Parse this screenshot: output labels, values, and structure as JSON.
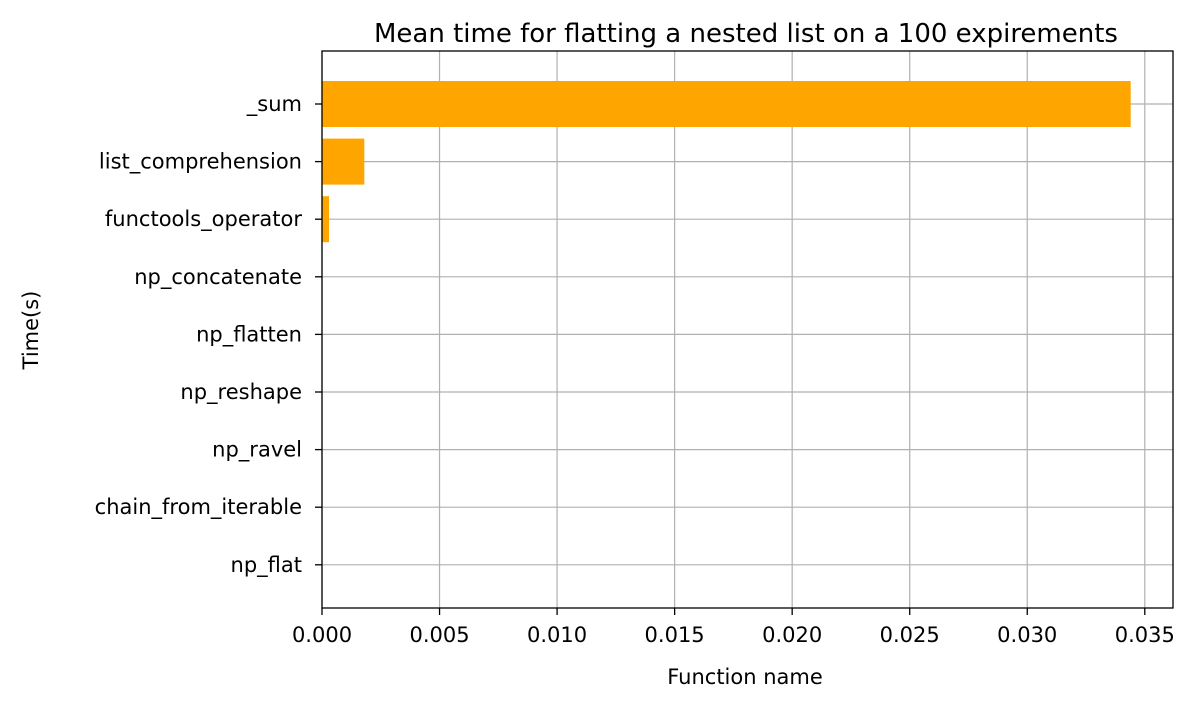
{
  "chart_data": {
    "type": "bar",
    "orientation": "horizontal",
    "title": "Mean time for flatting a nested list on a 100 expirements",
    "xlabel": "Function name",
    "ylabel": "Time(s)",
    "categories": [
      "_sum",
      "list_comprehension",
      "functools_operator",
      "np_concatenate",
      "np_flatten",
      "np_reshape",
      "np_ravel",
      "chain_from_iterable",
      "np_flat"
    ],
    "values": [
      0.0344,
      0.0018,
      0.0003,
      1e-05,
      1e-05,
      1e-05,
      1e-05,
      1e-05,
      1e-05
    ],
    "xlim": [
      0,
      0.0362
    ],
    "xticks": [
      0.0,
      0.005,
      0.01,
      0.015,
      0.02,
      0.025,
      0.03,
      0.035
    ],
    "xtick_labels": [
      "0.000",
      "0.005",
      "0.010",
      "0.015",
      "0.020",
      "0.025",
      "0.030",
      "0.035"
    ],
    "grid": true,
    "bar_color": "#ffa500"
  }
}
